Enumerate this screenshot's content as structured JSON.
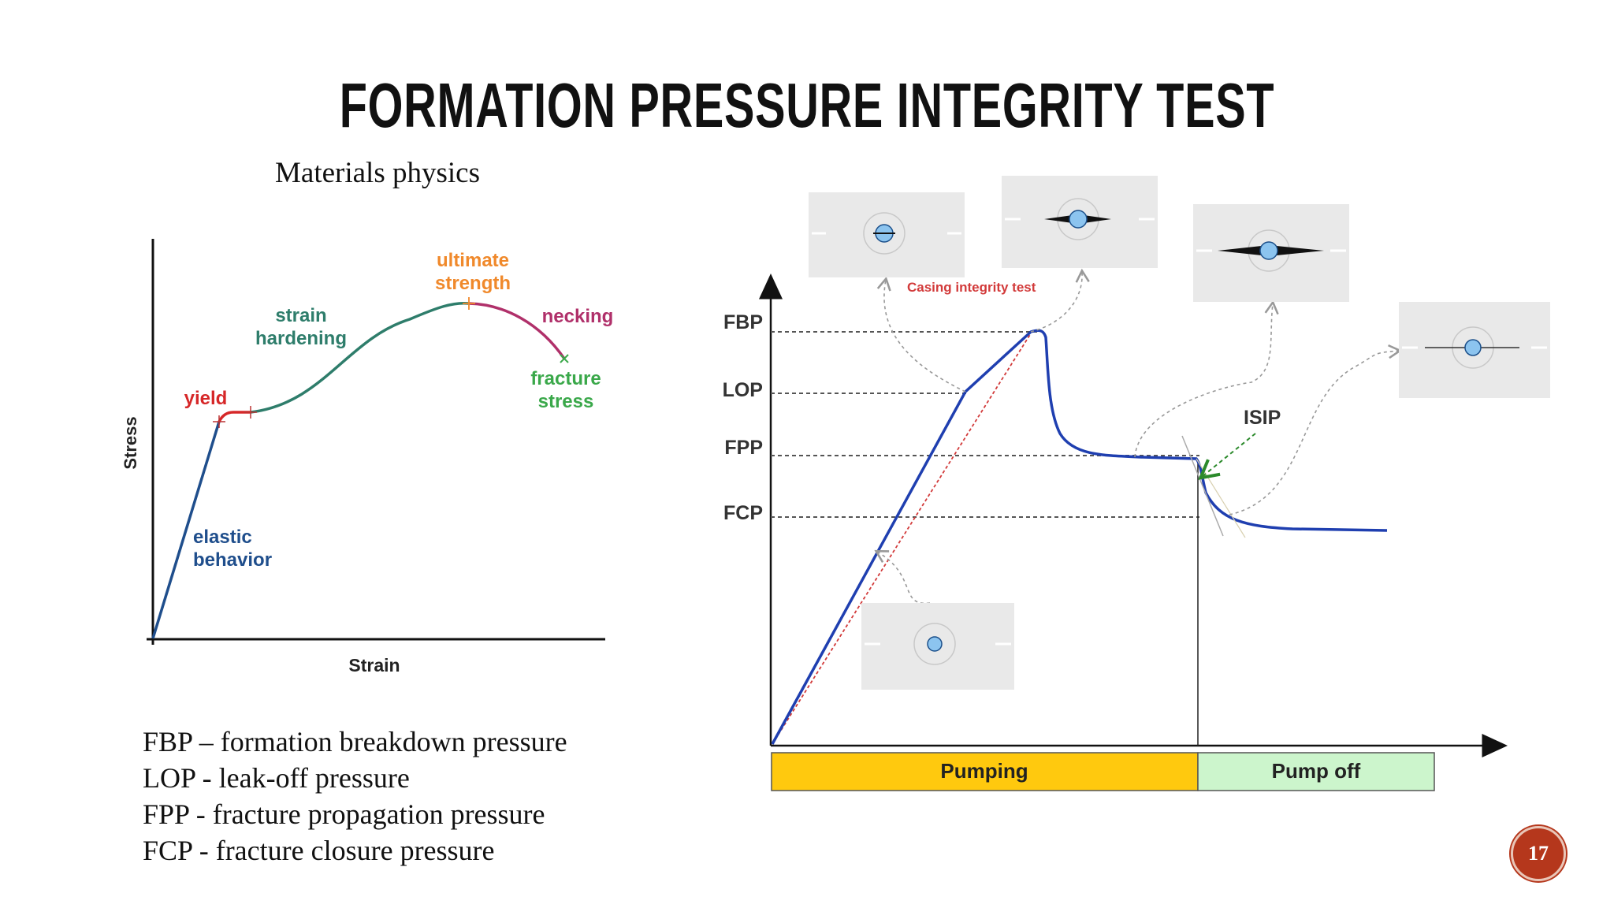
{
  "slide": {
    "title": "FORMATION PRESSURE INTEGRITY TEST",
    "subtitle": "Materials physics",
    "page_number": "17"
  },
  "stress_strain": {
    "xlabel": "Strain",
    "ylabel": "Stress",
    "labels": {
      "ultimate_1": "ultimate",
      "ultimate_2": "strength",
      "strain_1": "strain",
      "strain_2": "hardening",
      "necking": "necking",
      "fracture_1": "fracture",
      "fracture_2": "stress",
      "yield": "yield",
      "elastic_1": "elastic",
      "elastic_2": "behavior"
    },
    "colors": {
      "elastic": "#1f4e8c",
      "yield": "#d62728",
      "hardening": "#2e7d6b",
      "ultimate": "#f0892b",
      "necking": "#b0306a",
      "fracture": "#3aa84a"
    }
  },
  "pressure_test": {
    "levels": {
      "fbp": "FBP",
      "lop": "LOP",
      "fpp": "FPP",
      "fcp": "FCP"
    },
    "casing_label": "Casing integrity test",
    "isip_label": "ISIP",
    "pumping_label": "Pumping",
    "pump_off_label": "Pump off",
    "colors": {
      "curve": "#1f3fb0",
      "pumping": "#ffc90e",
      "pump_off": "#ccf5cc"
    }
  },
  "legend": [
    "FBP – formation breakdown pressure",
    "LOP - leak-off pressure",
    "FPP - fracture propagation pressure",
    "FCP - fracture closure pressure"
  ]
}
